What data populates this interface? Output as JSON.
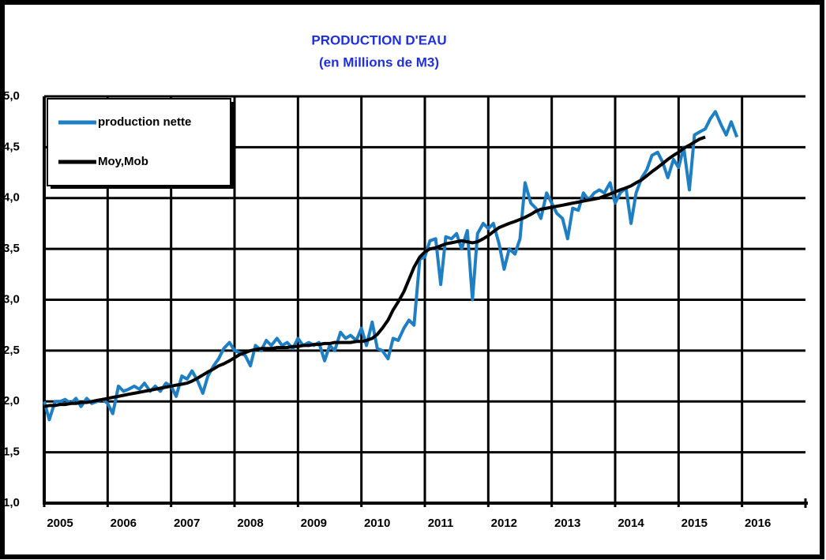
{
  "chart_data": {
    "type": "line",
    "title": "PRODUCTION D'EAU",
    "subtitle": "(en Millions de M3)",
    "legend": "upper left",
    "grid": true,
    "xlim": [
      2005,
      2017
    ],
    "xticks": [
      2005,
      2006,
      2007,
      2008,
      2009,
      2010,
      2011,
      2012,
      2013,
      2014,
      2015,
      2016
    ],
    "ylim": [
      1,
      5
    ],
    "yticks": [
      {
        "value": 1,
        "label": "1,0"
      },
      {
        "value": 1.5,
        "label": "1,5"
      },
      {
        "value": 2,
        "label": "2,0"
      },
      {
        "value": 2.5,
        "label": "2,5"
      },
      {
        "value": 3,
        "label": "3,0"
      },
      {
        "value": 3.5,
        "label": "3,5"
      },
      {
        "value": 4,
        "label": "4,0"
      },
      {
        "value": 4.5,
        "label": "4,5"
      },
      {
        "value": 5,
        "label": "5,0"
      }
    ],
    "x": [
      2005.0,
      2005.08,
      2005.17,
      2005.25,
      2005.33,
      2005.42,
      2005.5,
      2005.58,
      2005.67,
      2005.75,
      2005.83,
      2005.92,
      2006.0,
      2006.08,
      2006.17,
      2006.25,
      2006.33,
      2006.42,
      2006.5,
      2006.58,
      2006.67,
      2006.75,
      2006.83,
      2006.92,
      2007.0,
      2007.08,
      2007.17,
      2007.25,
      2007.33,
      2007.42,
      2007.5,
      2007.58,
      2007.67,
      2007.75,
      2007.83,
      2007.92,
      2008.0,
      2008.08,
      2008.17,
      2008.25,
      2008.33,
      2008.42,
      2008.5,
      2008.58,
      2008.67,
      2008.75,
      2008.83,
      2008.92,
      2009.0,
      2009.08,
      2009.17,
      2009.25,
      2009.33,
      2009.42,
      2009.5,
      2009.58,
      2009.67,
      2009.75,
      2009.83,
      2009.92,
      2010.0,
      2010.08,
      2010.17,
      2010.25,
      2010.33,
      2010.42,
      2010.5,
      2010.58,
      2010.67,
      2010.75,
      2010.83,
      2010.92,
      2011.0,
      2011.08,
      2011.17,
      2011.25,
      2011.33,
      2011.42,
      2011.5,
      2011.58,
      2011.67,
      2011.75,
      2011.83,
      2011.92,
      2012.0,
      2012.08,
      2012.17,
      2012.25,
      2012.33,
      2012.42,
      2012.5,
      2012.58,
      2012.67,
      2012.75,
      2012.83,
      2012.92,
      2013.0,
      2013.08,
      2013.17,
      2013.25,
      2013.33,
      2013.42,
      2013.5,
      2013.58,
      2013.67,
      2013.75,
      2013.83,
      2013.92,
      2014.0,
      2014.08,
      2014.17,
      2014.25,
      2014.33,
      2014.42,
      2014.5,
      2014.58,
      2014.67,
      2014.75,
      2014.83,
      2014.92,
      2015.0,
      2015.08,
      2015.17,
      2015.25,
      2015.33,
      2015.42,
      2015.5,
      2015.58,
      2015.67,
      2015.75,
      2015.83,
      2015.92
    ],
    "series": [
      {
        "name": "production nette",
        "color": "#1e7fc4",
        "values": [
          2.0,
          1.82,
          2.0,
          2.0,
          2.02,
          1.98,
          2.03,
          1.95,
          2.03,
          1.98,
          2.0,
          2.02,
          1.98,
          1.88,
          2.15,
          2.1,
          2.12,
          2.15,
          2.12,
          2.18,
          2.1,
          2.15,
          2.1,
          2.18,
          2.15,
          2.05,
          2.25,
          2.22,
          2.3,
          2.2,
          2.08,
          2.25,
          2.35,
          2.42,
          2.52,
          2.58,
          2.5,
          2.48,
          2.45,
          2.35,
          2.55,
          2.5,
          2.6,
          2.55,
          2.62,
          2.55,
          2.58,
          2.52,
          2.62,
          2.55,
          2.58,
          2.55,
          2.58,
          2.4,
          2.55,
          2.5,
          2.68,
          2.62,
          2.65,
          2.6,
          2.72,
          2.55,
          2.78,
          2.52,
          2.5,
          2.42,
          2.62,
          2.6,
          2.72,
          2.8,
          2.75,
          3.4,
          3.42,
          3.58,
          3.6,
          3.15,
          3.62,
          3.6,
          3.65,
          3.5,
          3.68,
          3.0,
          3.65,
          3.75,
          3.7,
          3.75,
          3.55,
          3.3,
          3.5,
          3.45,
          3.6,
          4.15,
          3.95,
          3.9,
          3.8,
          4.05,
          3.95,
          3.85,
          3.8,
          3.6,
          3.9,
          3.88,
          4.05,
          3.98,
          4.05,
          4.08,
          4.05,
          4.15,
          3.95,
          4.05,
          4.1,
          3.75,
          4.05,
          4.2,
          4.28,
          4.42,
          4.45,
          4.35,
          4.2,
          4.38,
          4.3,
          4.5,
          4.08,
          4.62,
          4.65,
          4.68,
          4.78,
          4.85,
          4.72,
          4.62,
          4.75,
          4.6
        ]
      },
      {
        "name": "Moy,Mob",
        "color": "#000000",
        "values": [
          1.95,
          1.96,
          1.96,
          1.97,
          1.97,
          1.98,
          1.98,
          1.99,
          1.99,
          2.0,
          2.01,
          2.02,
          2.03,
          2.04,
          2.05,
          2.06,
          2.07,
          2.08,
          2.09,
          2.1,
          2.11,
          2.12,
          2.13,
          2.14,
          2.15,
          2.16,
          2.17,
          2.18,
          2.2,
          2.23,
          2.26,
          2.29,
          2.32,
          2.35,
          2.37,
          2.4,
          2.43,
          2.46,
          2.48,
          2.5,
          2.51,
          2.52,
          2.52,
          2.52,
          2.53,
          2.53,
          2.53,
          2.54,
          2.54,
          2.55,
          2.55,
          2.56,
          2.56,
          2.57,
          2.57,
          2.58,
          2.58,
          2.58,
          2.58,
          2.59,
          2.59,
          2.6,
          2.62,
          2.66,
          2.72,
          2.8,
          2.9,
          2.98,
          3.08,
          3.2,
          3.32,
          3.42,
          3.47,
          3.5,
          3.51,
          3.53,
          3.55,
          3.56,
          3.57,
          3.58,
          3.57,
          3.56,
          3.57,
          3.6,
          3.63,
          3.67,
          3.71,
          3.73,
          3.75,
          3.77,
          3.79,
          3.81,
          3.84,
          3.87,
          3.89,
          3.9,
          3.91,
          3.92,
          3.93,
          3.94,
          3.95,
          3.96,
          3.97,
          3.98,
          3.99,
          4.0,
          4.02,
          4.04,
          4.06,
          4.08,
          4.1,
          4.12,
          4.15,
          4.18,
          4.22,
          4.26,
          4.3,
          4.34,
          4.38,
          4.42,
          4.45,
          4.49,
          4.52,
          4.55,
          4.58,
          4.6,
          null,
          null,
          null,
          null,
          null,
          null
        ]
      }
    ]
  }
}
